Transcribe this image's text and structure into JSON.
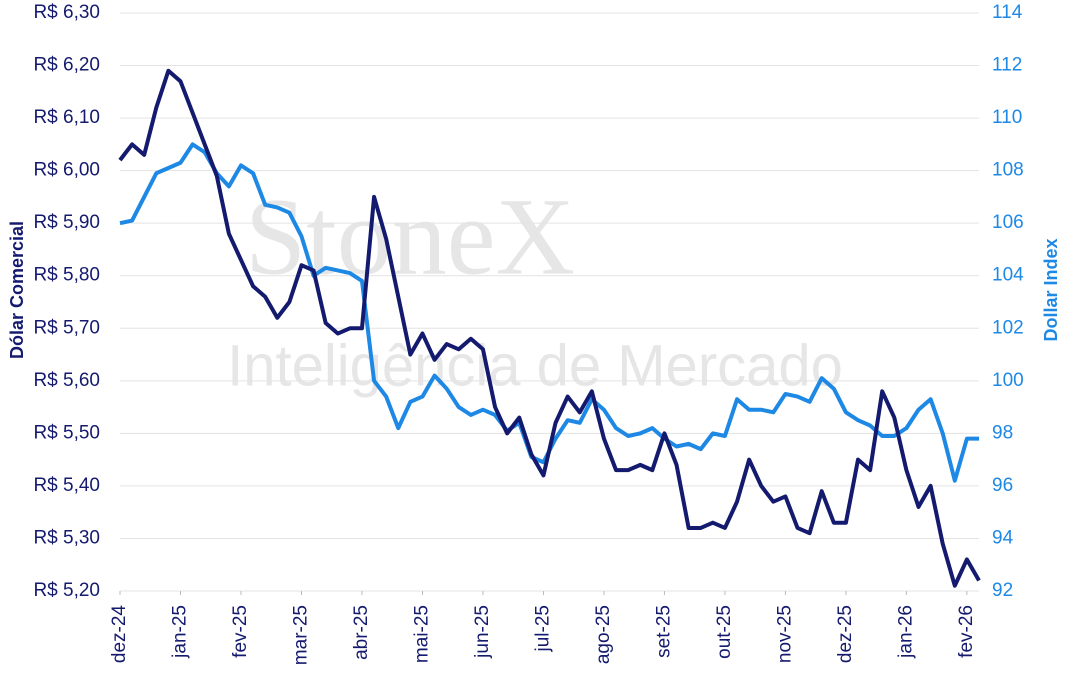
{
  "chart_data": {
    "type": "line",
    "watermark": "StoneX",
    "watermark_subtitle": "Inteligência de Mercado",
    "ylabel": "Dólar Comercial",
    "y2label": "Dollar Index",
    "grid": true,
    "x": [
      0,
      0.2,
      0.4,
      0.6,
      0.8,
      1,
      1.2,
      1.4,
      1.6,
      1.8,
      2,
      2.2,
      2.4,
      2.6,
      2.8,
      3,
      3.2,
      3.4,
      3.6,
      3.8,
      4,
      4.2,
      4.4,
      4.6,
      4.8,
      5,
      5.2,
      5.4,
      5.6,
      5.8,
      6,
      6.2,
      6.4,
      6.6,
      6.8,
      7,
      7.2,
      7.4,
      7.6,
      7.8,
      8,
      8.2,
      8.4,
      8.6,
      8.8,
      9,
      9.2,
      9.4,
      9.6,
      9.8,
      10,
      10.2,
      10.4,
      10.6,
      10.8,
      11,
      11.2,
      11.4,
      11.6,
      11.8,
      12,
      12.2,
      12.4,
      12.6,
      12.8,
      13,
      13.2,
      13.4,
      13.6,
      13.8,
      14,
      14.2
    ],
    "xlim": [
      0,
      14.2
    ],
    "xticks": [
      {
        "value": 0,
        "label": "dez-24"
      },
      {
        "value": 1,
        "label": "jan-25"
      },
      {
        "value": 2,
        "label": "fev-25"
      },
      {
        "value": 3,
        "label": "mar-25"
      },
      {
        "value": 4,
        "label": "abr-25"
      },
      {
        "value": 5,
        "label": "mai-25"
      },
      {
        "value": 6,
        "label": "jun-25"
      },
      {
        "value": 7,
        "label": "jul-25"
      },
      {
        "value": 8,
        "label": "ago-25"
      },
      {
        "value": 9,
        "label": "set-25"
      },
      {
        "value": 10,
        "label": "out-25"
      },
      {
        "value": 11,
        "label": "nov-25"
      },
      {
        "value": 12,
        "label": "dez-25"
      },
      {
        "value": 13,
        "label": "jan-26"
      },
      {
        "value": 14,
        "label": "fev-26"
      }
    ],
    "ylim": [
      5.2,
      6.3
    ],
    "yticks": [
      {
        "value": 5.2,
        "label": "R$ 5,20"
      },
      {
        "value": 5.3,
        "label": "R$ 5,30"
      },
      {
        "value": 5.4,
        "label": "R$ 5,40"
      },
      {
        "value": 5.5,
        "label": "R$ 5,50"
      },
      {
        "value": 5.6,
        "label": "R$ 5,60"
      },
      {
        "value": 5.7,
        "label": "R$ 5,70"
      },
      {
        "value": 5.8,
        "label": "R$ 5,80"
      },
      {
        "value": 5.9,
        "label": "R$ 5,90"
      },
      {
        "value": 6.0,
        "label": "R$ 6,00"
      },
      {
        "value": 6.1,
        "label": "R$ 6,10"
      },
      {
        "value": 6.2,
        "label": "R$ 6,20"
      },
      {
        "value": 6.3,
        "label": "R$ 6,30"
      }
    ],
    "y2lim": [
      92,
      114
    ],
    "y2ticks": [
      92,
      94,
      96,
      98,
      100,
      102,
      104,
      106,
      108,
      110,
      112,
      114
    ],
    "series": [
      {
        "color": "#1e88e5",
        "axis": "y2",
        "values": [
          106.0,
          106.1,
          107.0,
          107.9,
          108.1,
          108.3,
          109.0,
          108.7,
          107.9,
          107.4,
          108.2,
          107.9,
          106.7,
          106.6,
          106.4,
          105.5,
          104.0,
          104.3,
          104.2,
          104.1,
          103.8,
          100.0,
          99.4,
          98.2,
          99.2,
          99.4,
          100.2,
          99.7,
          99.0,
          98.7,
          98.9,
          98.7,
          98.1,
          98.4,
          97.1,
          96.9,
          97.8,
          98.5,
          98.4,
          99.3,
          98.9,
          98.2,
          97.9,
          98.0,
          98.2,
          97.8,
          97.5,
          97.6,
          97.4,
          98.0,
          97.9,
          99.3,
          98.9,
          98.9,
          98.8,
          99.5,
          99.4,
          99.2,
          100.1,
          99.7,
          98.8,
          98.5,
          98.3,
          97.9,
          97.9,
          98.2,
          98.9,
          99.3,
          98.0,
          96.2,
          97.8,
          97.8
        ]
      },
      {
        "color": "#141a6e",
        "axis": "y",
        "values": [
          6.02,
          6.05,
          6.03,
          6.12,
          6.19,
          6.17,
          6.11,
          6.05,
          5.99,
          5.88,
          5.83,
          5.78,
          5.76,
          5.72,
          5.75,
          5.82,
          5.81,
          5.71,
          5.69,
          5.7,
          5.7,
          5.95,
          5.87,
          5.76,
          5.65,
          5.69,
          5.64,
          5.67,
          5.66,
          5.68,
          5.66,
          5.55,
          5.5,
          5.53,
          5.46,
          5.42,
          5.52,
          5.57,
          5.54,
          5.58,
          5.49,
          5.43,
          5.43,
          5.44,
          5.43,
          5.5,
          5.44,
          5.32,
          5.32,
          5.33,
          5.32,
          5.37,
          5.45,
          5.4,
          5.37,
          5.38,
          5.32,
          5.31,
          5.39,
          5.33,
          5.33,
          5.45,
          5.43,
          5.58,
          5.53,
          5.43,
          5.36,
          5.4,
          5.29,
          5.21,
          5.26,
          5.22
        ]
      }
    ]
  }
}
